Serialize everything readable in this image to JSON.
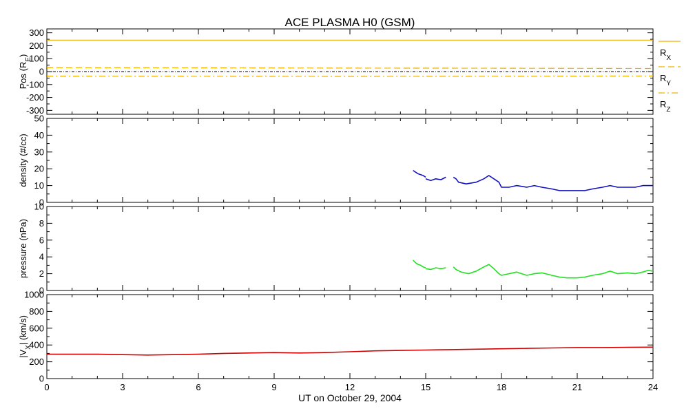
{
  "title": "ACE PLASMA H0 (GSM)",
  "xaxis": {
    "label": "UT on October 29, 2004",
    "range": [
      0,
      24
    ],
    "ticks": [
      0,
      3,
      6,
      9,
      12,
      15,
      18,
      21,
      24
    ],
    "tick_labels": [
      "0",
      "3",
      "6",
      "9",
      "12",
      "15",
      "18",
      "21",
      "24"
    ]
  },
  "colors": {
    "axes": "#000000",
    "position": "#f0b000",
    "density": "#1010c0",
    "pressure": "#20e020",
    "velocity": "#d00000",
    "zero_line": "#000000"
  },
  "chart_data": [
    {
      "type": "line",
      "id": "position",
      "ylabel": "Pos (R",
      "ylabel_sub": "E",
      "ylabel_end": ")",
      "ylim": [
        -330,
        330
      ],
      "yticks": [
        -300,
        -200,
        -100,
        0,
        100,
        200,
        300
      ],
      "ytick_labels": [
        "-300",
        "-200",
        "-100",
        "0",
        "100",
        "200",
        "300"
      ],
      "zero_line": true,
      "series": [
        {
          "name_main": "R",
          "name_sub": "X",
          "style": "solid",
          "x": [
            0,
            24
          ],
          "y": [
            243,
            243
          ]
        },
        {
          "name_main": "R",
          "name_sub": "Y",
          "style": "dashed",
          "x": [
            0,
            6,
            12,
            18,
            24
          ],
          "y": [
            30,
            29,
            27,
            26,
            24
          ]
        },
        {
          "name_main": "R",
          "name_sub": "Z",
          "style": "dashdot",
          "x": [
            0,
            6,
            12,
            18,
            24
          ],
          "y": [
            -35,
            -36,
            -37,
            -36,
            -34
          ]
        }
      ]
    },
    {
      "type": "line",
      "id": "density",
      "ylabel": "density (#/cc)",
      "ylim": [
        0,
        50
      ],
      "yticks": [
        0,
        10,
        20,
        30,
        40,
        50
      ],
      "ytick_labels": [
        "0",
        "10",
        "20",
        "30",
        "40",
        "50"
      ],
      "segments": [
        {
          "x": [
            14.5,
            14.6,
            14.7,
            14.8,
            14.9,
            15.0
          ],
          "y": [
            19,
            18,
            17,
            16.5,
            16,
            15
          ]
        },
        {
          "x": [
            15.0,
            15.2,
            15.4,
            15.6,
            15.8
          ],
          "y": [
            14,
            13,
            14,
            13.5,
            15
          ]
        },
        {
          "x": [
            16.1,
            16.2,
            16.3,
            16.6,
            17.0,
            17.3,
            17.5,
            17.7,
            17.9,
            18.0,
            18.3,
            18.6,
            19.0,
            19.3,
            19.6,
            20.0,
            20.3,
            20.6,
            21.0,
            21.3,
            21.6,
            22.0,
            22.3,
            22.6,
            23.0,
            23.3,
            23.6,
            23.8,
            24.0
          ],
          "y": [
            15,
            14,
            12,
            11,
            12,
            14,
            16,
            14,
            12,
            9,
            9,
            10,
            9,
            10,
            9,
            8,
            7,
            7,
            7,
            7,
            8,
            9,
            10,
            9,
            9,
            9,
            10,
            10,
            10
          ]
        }
      ]
    },
    {
      "type": "line",
      "id": "pressure",
      "ylabel": "pressure (nPa)",
      "ylim": [
        0,
        10
      ],
      "yticks": [
        0,
        2,
        4,
        6,
        8,
        10
      ],
      "ytick_labels": [
        "0",
        "2",
        "4",
        "6",
        "8",
        "10"
      ],
      "segments": [
        {
          "x": [
            14.5,
            14.6,
            14.7,
            14.8,
            14.9,
            15.0
          ],
          "y": [
            3.6,
            3.3,
            3.1,
            3.0,
            2.8,
            2.7
          ]
        },
        {
          "x": [
            15.0,
            15.2,
            15.4,
            15.6,
            15.8
          ],
          "y": [
            2.6,
            2.5,
            2.7,
            2.6,
            2.7
          ]
        },
        {
          "x": [
            16.1,
            16.2,
            16.4,
            16.7,
            17.0,
            17.3,
            17.5,
            17.7,
            17.9,
            18.0,
            18.3,
            18.6,
            19.0,
            19.3,
            19.6,
            20.0,
            20.3,
            20.6,
            21.0,
            21.3,
            21.6,
            22.0,
            22.3,
            22.6,
            23.0,
            23.3,
            23.6,
            23.8,
            24.0
          ],
          "y": [
            2.8,
            2.5,
            2.2,
            2.0,
            2.3,
            2.8,
            3.1,
            2.6,
            2.0,
            1.8,
            2.0,
            2.2,
            1.8,
            2.0,
            2.1,
            1.8,
            1.6,
            1.5,
            1.5,
            1.6,
            1.8,
            2.0,
            2.3,
            2.0,
            2.1,
            2.0,
            2.2,
            2.4,
            2.3
          ]
        }
      ]
    },
    {
      "type": "line",
      "id": "velocity",
      "ylabel": "|V",
      "ylabel_sub": "X",
      "ylabel_end": "| (km/s)",
      "ylim": [
        0,
        1000
      ],
      "yticks": [
        0,
        200,
        400,
        600,
        800,
        1000
      ],
      "ytick_labels": [
        "0",
        "200",
        "400",
        "600",
        "800",
        "1000"
      ],
      "segments": [
        {
          "x": [
            0,
            1,
            2,
            3,
            4,
            5,
            6,
            7,
            8,
            9,
            10,
            11,
            12,
            13,
            14,
            15,
            16,
            17,
            18,
            19,
            20,
            21,
            22,
            23,
            24
          ],
          "y": [
            290,
            290,
            290,
            285,
            280,
            285,
            290,
            300,
            305,
            310,
            305,
            310,
            320,
            330,
            335,
            340,
            345,
            350,
            355,
            360,
            365,
            370,
            370,
            372,
            375
          ]
        }
      ]
    }
  ]
}
